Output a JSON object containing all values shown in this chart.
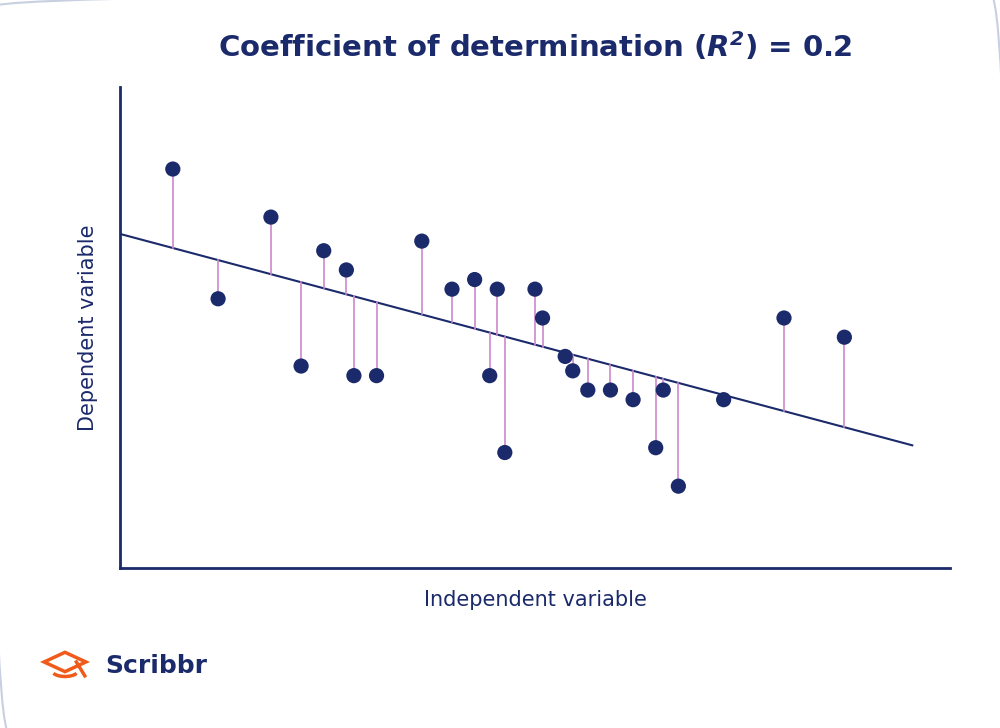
{
  "title": "Coefficient of determination ($\\bfit{R}^2$) = 0.2",
  "xlabel": "Independent variable",
  "ylabel": "Dependent variable",
  "background_color": "#ffffff",
  "plot_bg_color": "#ffffff",
  "dot_color": "#1b2a6b",
  "line_color": "#1b2a6b",
  "residual_color": "#cc88cc",
  "axis_color": "#1b2a6b",
  "title_color": "#1b2a6b",
  "label_color": "#1b2a6b",
  "scribbr_text_color": "#1b2a6b",
  "scribbr_icon_color": "#f05a1a",
  "border_color": "#c8cfe0",
  "x_data": [
    0.07,
    0.13,
    0.2,
    0.24,
    0.27,
    0.3,
    0.31,
    0.34,
    0.4,
    0.44,
    0.47,
    0.49,
    0.5,
    0.51,
    0.55,
    0.56,
    0.59,
    0.6,
    0.62,
    0.65,
    0.68,
    0.71,
    0.72,
    0.74,
    0.8,
    0.88,
    0.96
  ],
  "y_data": [
    0.83,
    0.56,
    0.73,
    0.42,
    0.66,
    0.62,
    0.4,
    0.4,
    0.68,
    0.58,
    0.6,
    0.4,
    0.58,
    0.24,
    0.58,
    0.52,
    0.44,
    0.41,
    0.37,
    0.37,
    0.35,
    0.25,
    0.37,
    0.17,
    0.35,
    0.52,
    0.48
  ],
  "line_x": [
    0.0,
    1.05
  ],
  "line_y_start": 0.695,
  "line_y_end": 0.255,
  "xlim": [
    0.0,
    1.1
  ],
  "ylim": [
    0.0,
    1.0
  ],
  "figsize": [
    10.0,
    7.28
  ],
  "dpi": 100
}
